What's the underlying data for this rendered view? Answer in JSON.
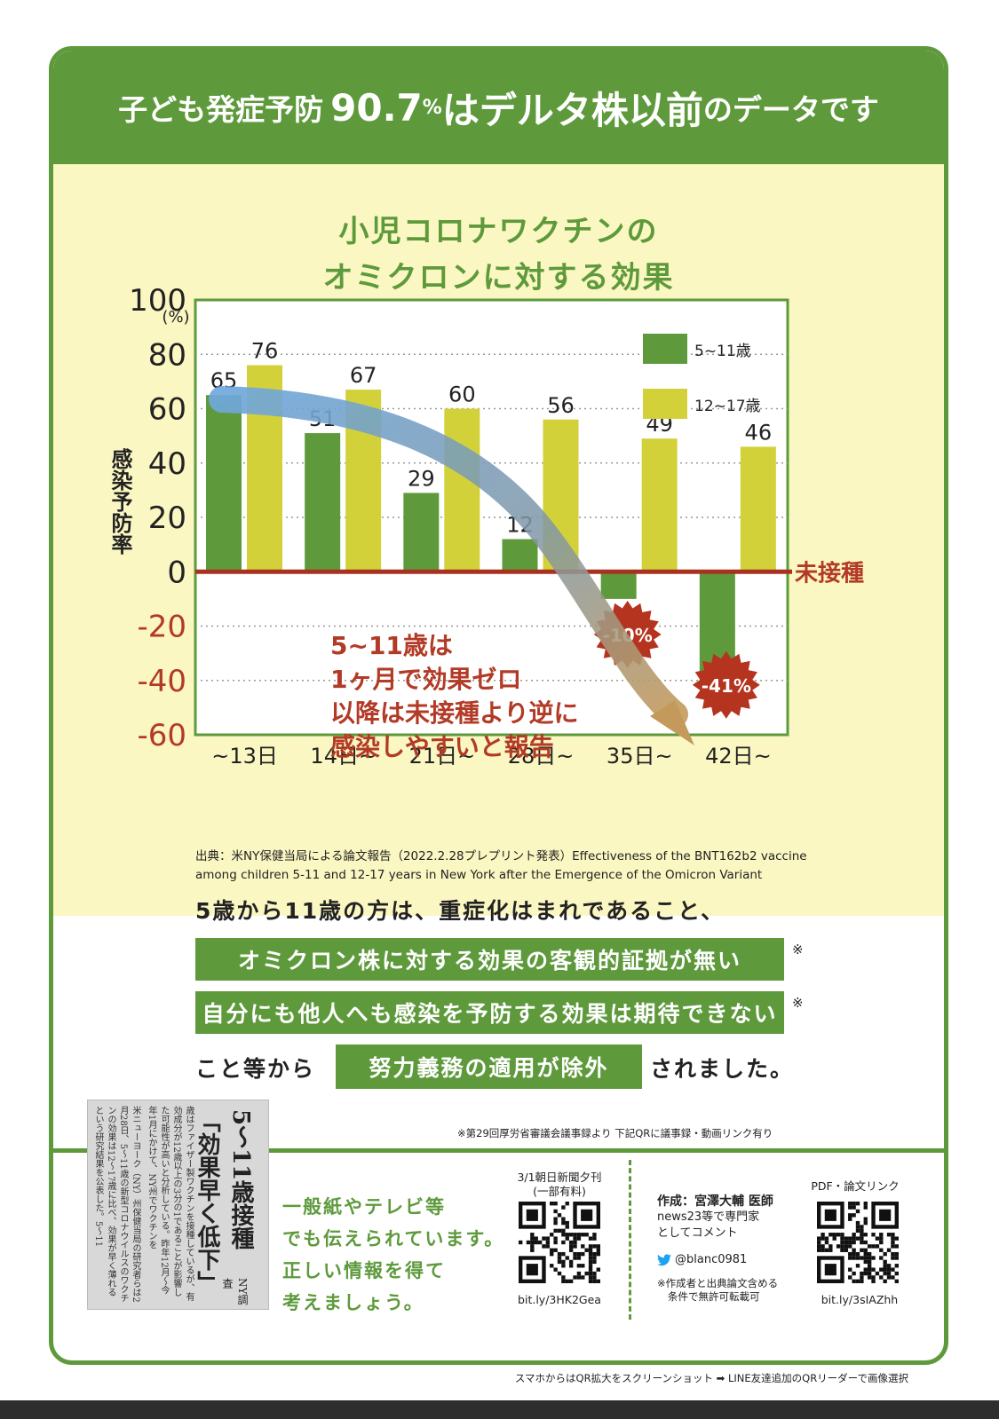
{
  "header": {
    "part1": "子ども発症予防",
    "part2": "90.7",
    "part3": "%",
    "part4": "はデルタ株以前",
    "part5": "のデータです"
  },
  "chart_data": {
    "type": "bar",
    "title_lines": [
      "小児コロナワクチンの",
      "オミクロンに対する効果"
    ],
    "ylabel": "感染予防率",
    "yunit": "(%)",
    "ylim": [
      -60,
      100
    ],
    "yticks": [
      100,
      80,
      60,
      40,
      20,
      0,
      -20,
      -40,
      -60
    ],
    "categories": [
      "~13日",
      "14日~",
      "21日~",
      "28日~",
      "35日~",
      "42日~"
    ],
    "series": [
      {
        "name": "5~11歳",
        "color": "#5e9a3c",
        "values": [
          65,
          51,
          29,
          12,
          -10,
          -41
        ]
      },
      {
        "name": "12~17歳",
        "color": "#d3d13a",
        "values": [
          76,
          67,
          60,
          56,
          49,
          46
        ]
      }
    ],
    "value_labels": [
      "65",
      "76",
      "51",
      "67",
      "29",
      "60",
      "12",
      "56",
      "-10%",
      "49",
      "-41%",
      "46"
    ],
    "zero_label": "未接種",
    "annotation_lines": [
      "5~11歳は",
      "1ヶ月で効果ゼロ",
      "以降は未接種より逆に",
      "感染しやすいと報告"
    ],
    "legend_position": "top-right",
    "grid": true
  },
  "source": {
    "line1": "出典：米NY保健当局による論文報告（2022.2.28プレプリント発表）Effectiveness of the BNT162b2 vaccine",
    "line2": "among children 5-11 and 12-17 years in New York after the Emergence of the Omicron Variant"
  },
  "message": {
    "line1": "5歳から11歳の方は、重症化はまれであること、",
    "box1": "オミクロン株に対する効果の客観的証拠が無い",
    "box2": "自分にも他人へも感染を予防する効果は期待できない",
    "mark": "※",
    "line4_pre": "こと等から",
    "box3": "努力義務の適用が除外",
    "line4_post": "されました。",
    "note": "※第29回厚労省審議会議事録より 下記QRに議事録・動画リンク有り"
  },
  "clipping": {
    "headline1": "5〜11歳接種",
    "headline2": "「効果早く低下」",
    "tag": "NY調査",
    "body": [
      "米ニューヨーク（NY）州保健当局の研究者らは2月28日、5〜11歳の新型コロナウイルスのワクチンの効果は12〜17歳に比べ、効果が早く薄れるという研究結果を公表した。5〜11",
      "歳はファイザー製ワクチンを接種しているが、有効成分が12歳以上の3分の1であることが影響した可能性が高いと分析している。昨年12月〜今年1月にかけて、NY州でワクチンを"
    ]
  },
  "footer": {
    "green_lines": [
      "一般紙やテレビ等",
      "でも伝えられています。",
      "正しい情報を得て",
      "考えましょう。"
    ],
    "qr1_caption1": "3/1朝日新聞夕刊",
    "qr1_caption2": "(一部有料)",
    "qr1_link": "bit.ly/3HK2Gea",
    "author_line1": "作成：宮澤大輔 医師",
    "author_line2": "news23等で専門家",
    "author_line3": "としてコメント",
    "twitter": "@blanc0981",
    "permission1": "※作成者と出典論文含める",
    "permission2": "条件で無許可転載可",
    "qr2_caption": "PDF・論文リンク",
    "qr2_link": "bit.ly/3sIAZhh",
    "bottom_note": "スマホからはQR拡大をスクリーンショット ➡ LINE友達追加のQRリーダーで画像選択"
  }
}
